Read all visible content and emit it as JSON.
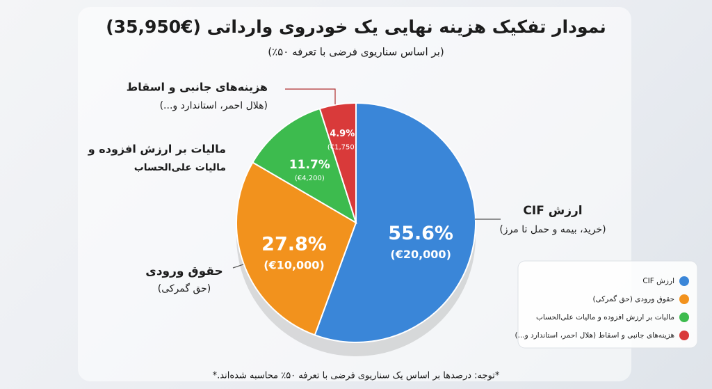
{
  "chart_data": {
    "type": "pie",
    "title": "نمودار تفکیک هزینه نهایی یک خودروی وارداتی (€35,950)",
    "subtitle": "(بر اساس سناریوی فرضی با تعرفه ۵۰٪)",
    "categories": [
      "ارزش CIF",
      "حقوق ورودی (حق گمرکی)",
      "مالیات بر ارزش افزوده و مالیات علی‌الحساب",
      "هزینه‌های جانبی و اسقاط (هلال احمر، استاندارد و...)"
    ],
    "values": [
      55.6,
      27.8,
      11.7,
      4.9
    ],
    "value_labels": [
      "55.6%",
      "27.8%",
      "11.7%",
      "4.9%"
    ],
    "amount_labels": [
      "(€20,000)",
      "(€10,000)",
      "(€4,200)",
      "(€1,750)"
    ],
    "colors": [
      "#3a86d8",
      "#f2921d",
      "#3dbb4e",
      "#d93a3a"
    ],
    "callouts": [
      {
        "title": "ارزش CIF",
        "subtitle": "(خرید، بیمه و حمل تا مرز)"
      },
      {
        "title": "حقوق ورودی",
        "subtitle": "(حق گمرکی)"
      },
      {
        "title": "مالیات بر ارزش افزوده و",
        "subtitle": "مالیات علی‌الحساب"
      },
      {
        "title": "هزینه‌های جانبی و اسقاط",
        "subtitle": "(هلال احمر، استاندارد و...)"
      }
    ],
    "legend": "bottom-right",
    "footnote": "*توجه: درصدها بر اساس یک سناریوی فرضی با تعرفه ۵۰٪ محاسبه شده‌اند.*"
  }
}
